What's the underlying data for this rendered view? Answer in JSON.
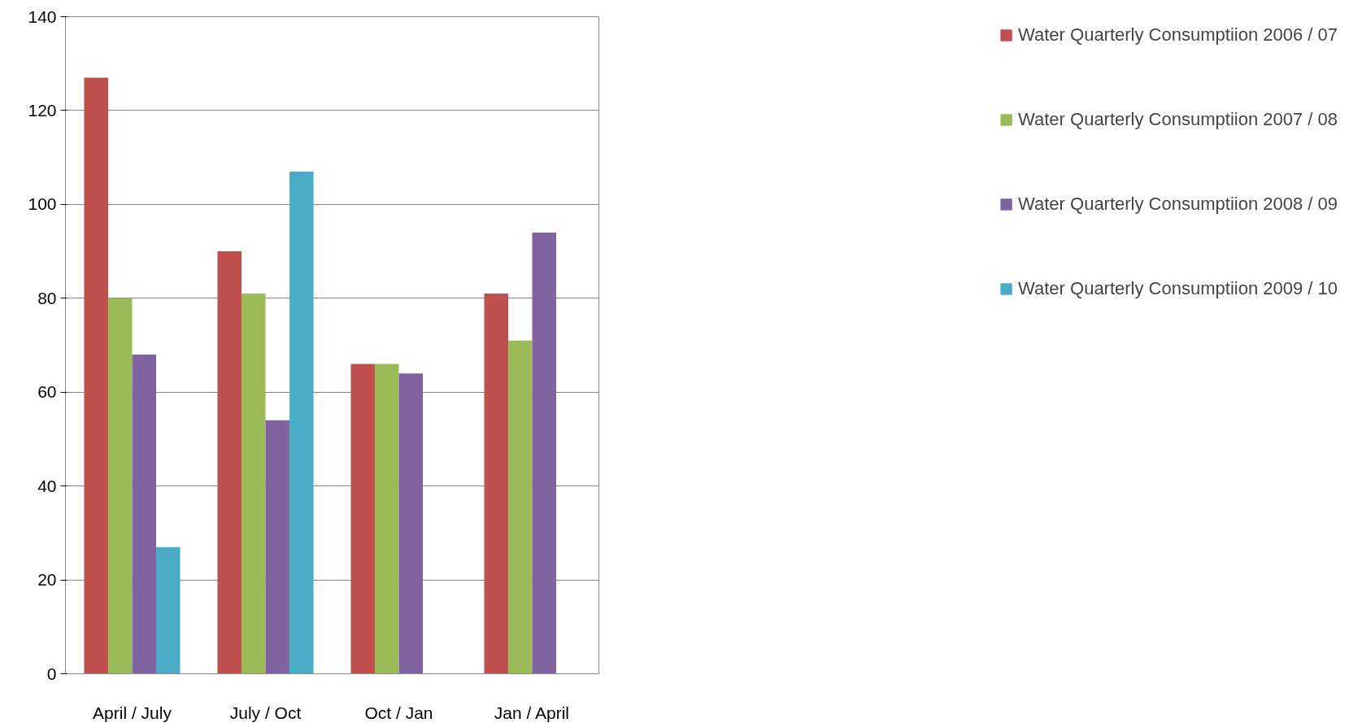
{
  "chart_data": {
    "type": "bar",
    "categories": [
      "April / July",
      "July / Oct",
      "Oct / Jan",
      "Jan / April"
    ],
    "series": [
      {
        "name": "Water Quarterly Consumptiion 2006 / 07",
        "color": "#c0504d",
        "values": [
          127,
          90,
          66,
          81
        ]
      },
      {
        "name": "Water Quarterly Consumptiion 2007 / 08",
        "color": "#9bbb59",
        "values": [
          80,
          81,
          66,
          71
        ]
      },
      {
        "name": "Water Quarterly Consumptiion 2008 / 09",
        "color": "#8064a2",
        "values": [
          68,
          54,
          64,
          94
        ]
      },
      {
        "name": "Water Quarterly Consumptiion 2009 / 10",
        "color": "#4bacc6",
        "values": [
          27,
          107,
          null,
          null
        ]
      }
    ],
    "ylim": [
      0,
      140
    ],
    "yticks": [
      0,
      20,
      40,
      60,
      80,
      100,
      120,
      140
    ],
    "grid": "y",
    "legend": "right"
  }
}
